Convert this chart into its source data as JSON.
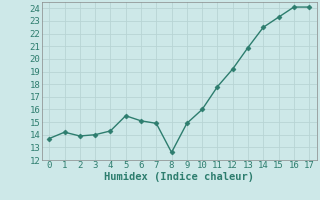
{
  "xlabel": "Humidex (Indice chaleur)",
  "x": [
    0,
    1,
    2,
    3,
    4,
    5,
    6,
    7,
    8,
    9,
    10,
    11,
    12,
    13,
    14,
    15,
    16,
    17
  ],
  "y": [
    13.7,
    14.2,
    13.9,
    14.0,
    14.3,
    15.5,
    15.1,
    14.9,
    12.6,
    14.9,
    16.0,
    17.8,
    19.2,
    20.9,
    22.5,
    23.3,
    24.1,
    24.1
  ],
  "xlim": [
    -0.5,
    17.5
  ],
  "ylim": [
    12,
    24.5
  ],
  "yticks": [
    12,
    13,
    14,
    15,
    16,
    17,
    18,
    19,
    20,
    21,
    22,
    23,
    24
  ],
  "xticks": [
    0,
    1,
    2,
    3,
    4,
    5,
    6,
    7,
    8,
    9,
    10,
    11,
    12,
    13,
    14,
    15,
    16,
    17
  ],
  "line_color": "#2d7d6e",
  "bg_color": "#cde8e8",
  "grid_major_color": "#b8d4d4",
  "grid_minor_color": "#d0e4e4",
  "tick_color": "#2d7d6e",
  "xlabel_fontsize": 7.5,
  "tick_fontsize": 6.5,
  "line_width": 1.0,
  "marker_size": 2.5
}
